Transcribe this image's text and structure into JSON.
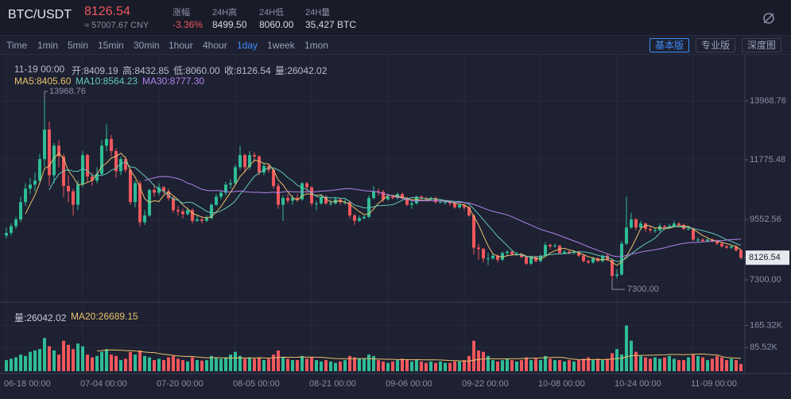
{
  "header": {
    "pair": "BTC/USDT",
    "price": "8126.54",
    "cny": "≈ 57007.67 CNY",
    "stats": [
      {
        "label": "涨幅",
        "value": "-3.36%"
      },
      {
        "label": "24H高",
        "value": "8499.50"
      },
      {
        "label": "24H低",
        "value": "8060.00"
      },
      {
        "label": "24H量",
        "value": "35,427 BTC"
      }
    ]
  },
  "toolbar": {
    "intervals": [
      "Time",
      "1min",
      "5min",
      "15min",
      "30min",
      "1hour",
      "4hour",
      "1day",
      "1week",
      "1mon"
    ],
    "active": "1day",
    "buttons": [
      "基本版",
      "专业版",
      "深度图"
    ]
  },
  "info": {
    "time": "11-19 00:00",
    "items": [
      "开:8409.19",
      "高:8432.85",
      "低:8060.00",
      "收:8126.54",
      "量:26042.02"
    ],
    "ma": [
      {
        "text": "MA5:8405.60",
        "color": "#e8c16a"
      },
      {
        "text": "MA10:8564.23",
        "color": "#5fc9b8"
      },
      {
        "text": "MA30:8777.30",
        "color": "#b083e8"
      }
    ],
    "volume": [
      {
        "text": "量:26042.02",
        "color": "#c9ccd6"
      },
      {
        "text": "MA20:26689.15",
        "color": "#e8c16a"
      }
    ]
  },
  "chart_data": {
    "type": "candlestick",
    "up_color": "#2ebd95",
    "down_color": "#f0575d",
    "ylim": [
      6473,
      15717
    ],
    "yticks": [
      13968.76,
      11775.48,
      9552.56,
      {
        "value": 7300,
        "label": "7300.00"
      }
    ],
    "vol_ylim": [
      0,
      250000
    ],
    "vol_yticks": [
      {
        "value": 165320,
        "label": "165.32K"
      },
      {
        "value": 85520,
        "label": "85.52K"
      }
    ],
    "annotations": {
      "high": "13968.76",
      "low": "7300.00"
    },
    "categories": [
      "06-18 00:00",
      null,
      null,
      null,
      null,
      null,
      null,
      null,
      null,
      null,
      null,
      null,
      null,
      null,
      null,
      null,
      "07-04 00:00",
      null,
      null,
      null,
      null,
      null,
      null,
      null,
      null,
      null,
      null,
      null,
      null,
      null,
      null,
      null,
      "07-20 00:00",
      null,
      null,
      null,
      null,
      null,
      null,
      null,
      null,
      null,
      null,
      null,
      null,
      null,
      null,
      null,
      "08-05 00:00",
      null,
      null,
      null,
      null,
      null,
      null,
      null,
      null,
      null,
      null,
      null,
      null,
      null,
      null,
      null,
      "08-21 00:00",
      null,
      null,
      null,
      null,
      null,
      null,
      null,
      null,
      null,
      null,
      null,
      null,
      null,
      null,
      null,
      "09-06 00:00",
      null,
      null,
      null,
      null,
      null,
      null,
      null,
      null,
      null,
      null,
      null,
      null,
      null,
      null,
      null,
      "09-22 00:00",
      null,
      null,
      null,
      null,
      null,
      null,
      null,
      null,
      null,
      null,
      null,
      null,
      null,
      null,
      null,
      "10-08 00:00",
      null,
      null,
      null,
      null,
      null,
      null,
      null,
      null,
      null,
      null,
      null,
      null,
      null,
      null,
      null,
      "10-24 00:00",
      null,
      null,
      null,
      null,
      null,
      null,
      null,
      null,
      null,
      null,
      null,
      null,
      null,
      null,
      null,
      "11-09 00:00",
      null,
      null,
      null,
      null,
      null,
      null,
      null,
      null,
      null,
      null
    ],
    "candles": [
      [
        8950,
        9250,
        8850,
        9050
      ],
      [
        9050,
        9400,
        8950,
        9300
      ],
      [
        9300,
        9650,
        9200,
        9550
      ],
      [
        9550,
        10400,
        9450,
        10200
      ],
      [
        10200,
        10900,
        10050,
        10700
      ],
      [
        10700,
        11100,
        10500,
        10850
      ],
      [
        10850,
        11300,
        10600,
        11000
      ],
      [
        11000,
        12000,
        10900,
        11800
      ],
      [
        11800,
        13968.76,
        11500,
        12900
      ],
      [
        12900,
        13200,
        10800,
        11200
      ],
      [
        11200,
        12400,
        10900,
        12300
      ],
      [
        12300,
        12500,
        11500,
        11900
      ],
      [
        11900,
        12000,
        10400,
        10800
      ],
      [
        10800,
        11200,
        10200,
        10600
      ],
      [
        10600,
        10700,
        9700,
        10100
      ],
      [
        10100,
        11000,
        9900,
        10850
      ],
      [
        10850,
        12100,
        10750,
        11950
      ],
      [
        11950,
        12000,
        10950,
        11150
      ],
      [
        11150,
        11300,
        10800,
        11000
      ],
      [
        11000,
        11500,
        10900,
        11250
      ],
      [
        11250,
        12500,
        11200,
        12300
      ],
      [
        12300,
        13100,
        12100,
        12550
      ],
      [
        12550,
        12700,
        11900,
        12100
      ],
      [
        12100,
        12200,
        11100,
        11350
      ],
      [
        11350,
        11900,
        11200,
        11800
      ],
      [
        11800,
        11900,
        11300,
        11400
      ],
      [
        11400,
        11450,
        10100,
        10200
      ],
      [
        10200,
        11000,
        10000,
        10900
      ],
      [
        10900,
        11000,
        9300,
        9450
      ],
      [
        9450,
        9900,
        9350,
        9700
      ],
      [
        9700,
        10700,
        9650,
        10650
      ],
      [
        10650,
        10850,
        10400,
        10550
      ],
      [
        10550,
        10900,
        10450,
        10750
      ],
      [
        10750,
        10800,
        10500,
        10600
      ],
      [
        10600,
        10700,
        10250,
        10350
      ],
      [
        10350,
        10400,
        9800,
        9900
      ],
      [
        9900,
        10050,
        9700,
        9850
      ],
      [
        9850,
        9950,
        9600,
        9750
      ],
      [
        9750,
        10000,
        9700,
        9900
      ],
      [
        9900,
        9950,
        9400,
        9500
      ],
      [
        9500,
        9700,
        9450,
        9550
      ],
      [
        9550,
        9650,
        9400,
        9500
      ],
      [
        9500,
        9700,
        9450,
        9600
      ],
      [
        9600,
        10150,
        9550,
        10100
      ],
      [
        10100,
        10500,
        10050,
        10400
      ],
      [
        10400,
        10650,
        10300,
        10550
      ],
      [
        10550,
        10950,
        10450,
        10850
      ],
      [
        10850,
        11050,
        10700,
        10900
      ],
      [
        10900,
        11600,
        10850,
        11500
      ],
      [
        11500,
        12300,
        11400,
        11950
      ],
      [
        11950,
        12000,
        11300,
        11500
      ],
      [
        11500,
        12100,
        11400,
        11950
      ],
      [
        11950,
        12050,
        11700,
        11900
      ],
      [
        11900,
        11950,
        11200,
        11300
      ],
      [
        11300,
        11650,
        11200,
        11550
      ],
      [
        11550,
        11600,
        11300,
        11400
      ],
      [
        11400,
        11450,
        10700,
        10800
      ],
      [
        10800,
        10900,
        9950,
        10100
      ],
      [
        10100,
        10450,
        9500,
        10350
      ],
      [
        10350,
        10500,
        10150,
        10250
      ],
      [
        10250,
        10450,
        10100,
        10350
      ],
      [
        10350,
        10500,
        10200,
        10300
      ],
      [
        10300,
        10950,
        10250,
        10900
      ],
      [
        10900,
        10950,
        10600,
        10750
      ],
      [
        10750,
        10800,
        10050,
        10150
      ],
      [
        10150,
        10250,
        9900,
        10150
      ],
      [
        10150,
        10500,
        10100,
        10400
      ],
      [
        10400,
        10450,
        10100,
        10150
      ],
      [
        10150,
        10300,
        10050,
        10150
      ],
      [
        10150,
        10400,
        10100,
        10300
      ],
      [
        10300,
        10350,
        10100,
        10200
      ],
      [
        10200,
        10300,
        10100,
        10200
      ],
      [
        10200,
        10250,
        9600,
        9700
      ],
      [
        9700,
        9750,
        9350,
        9500
      ],
      [
        9500,
        9700,
        9450,
        9600
      ],
      [
        9600,
        9700,
        9550,
        9650
      ],
      [
        9650,
        10450,
        9600,
        10350
      ],
      [
        10350,
        10800,
        10300,
        10600
      ],
      [
        10600,
        10700,
        10450,
        10580
      ],
      [
        10580,
        10650,
        10200,
        10300
      ],
      [
        10300,
        10500,
        10250,
        10400
      ],
      [
        10400,
        10450,
        10300,
        10350
      ],
      [
        10350,
        10550,
        10300,
        10500
      ],
      [
        10500,
        10550,
        10300,
        10350
      ],
      [
        10350,
        10400,
        10050,
        10100
      ],
      [
        10100,
        10250,
        9950,
        10150
      ],
      [
        10150,
        10450,
        10100,
        10400
      ],
      [
        10400,
        10450,
        10300,
        10350
      ],
      [
        10350,
        10400,
        10250,
        10300
      ],
      [
        10300,
        10400,
        10250,
        10350
      ],
      [
        10350,
        10400,
        10150,
        10200
      ],
      [
        10200,
        10300,
        10150,
        10200
      ],
      [
        10200,
        10250,
        10100,
        10200
      ],
      [
        10200,
        10250,
        10050,
        10150
      ],
      [
        10150,
        10200,
        9950,
        10000
      ],
      [
        10000,
        10150,
        9950,
        10100
      ],
      [
        10100,
        10150,
        9900,
        10000
      ],
      [
        10000,
        10050,
        9650,
        9700
      ],
      [
        9700,
        9750,
        8250,
        8500
      ],
      [
        8500,
        8650,
        8050,
        8450
      ],
      [
        8450,
        8500,
        7950,
        8100
      ],
      [
        8100,
        8300,
        7850,
        8100
      ],
      [
        8100,
        8300,
        8050,
        8200
      ],
      [
        8200,
        8250,
        7950,
        8050
      ],
      [
        8050,
        8350,
        8000,
        8300
      ],
      [
        8300,
        8400,
        8200,
        8350
      ],
      [
        8350,
        8400,
        8200,
        8250
      ],
      [
        8250,
        8350,
        8200,
        8250
      ],
      [
        8250,
        8300,
        8100,
        8150
      ],
      [
        8150,
        8200,
        7850,
        7900
      ],
      [
        7900,
        8200,
        7850,
        8150
      ],
      [
        8150,
        8200,
        7950,
        8000
      ],
      [
        8000,
        8250,
        7950,
        8200
      ],
      [
        8200,
        8700,
        8150,
        8600
      ],
      [
        8600,
        8650,
        8450,
        8550
      ],
      [
        8550,
        8650,
        8500,
        8580
      ],
      [
        8580,
        8600,
        8250,
        8300
      ],
      [
        8300,
        8400,
        8250,
        8350
      ],
      [
        8350,
        8400,
        8250,
        8300
      ],
      [
        8300,
        8400,
        8250,
        8350
      ],
      [
        8350,
        8400,
        8150,
        8200
      ],
      [
        8200,
        8250,
        7950,
        8000
      ],
      [
        8000,
        8050,
        7900,
        7950
      ],
      [
        7950,
        8150,
        7900,
        8100
      ],
      [
        8100,
        8150,
        7950,
        8000
      ],
      [
        8000,
        8250,
        7950,
        8200
      ],
      [
        8200,
        8250,
        8000,
        8050
      ],
      [
        8050,
        8100,
        7300,
        7450
      ],
      [
        7450,
        7700,
        7350,
        7500
      ],
      [
        7500,
        8750,
        7450,
        8650
      ],
      [
        8650,
        10400,
        8600,
        9250
      ],
      [
        9250,
        9800,
        9200,
        9550
      ],
      [
        9550,
        9600,
        9150,
        9250
      ],
      [
        9250,
        9500,
        9150,
        9400
      ],
      [
        9400,
        9450,
        9100,
        9200
      ],
      [
        9200,
        9300,
        9050,
        9150
      ],
      [
        9150,
        9250,
        9050,
        9150
      ],
      [
        9150,
        9400,
        9100,
        9300
      ],
      [
        9300,
        9350,
        9150,
        9250
      ],
      [
        9250,
        9400,
        9200,
        9300
      ],
      [
        9300,
        9500,
        9250,
        9400
      ],
      [
        9400,
        9450,
        9300,
        9350
      ],
      [
        9350,
        9400,
        9150,
        9200
      ],
      [
        9200,
        9300,
        9150,
        9200
      ],
      [
        9200,
        9250,
        8750,
        8800
      ],
      [
        8800,
        8900,
        8700,
        8800
      ],
      [
        8800,
        8850,
        8700,
        8750
      ],
      [
        8750,
        8850,
        8700,
        8800
      ],
      [
        8800,
        8850,
        8700,
        8750
      ],
      [
        8750,
        8800,
        8600,
        8650
      ],
      [
        8650,
        8700,
        8500,
        8550
      ],
      [
        8550,
        8600,
        8450,
        8500
      ],
      [
        8500,
        8600,
        8450,
        8550
      ],
      [
        8550,
        8600,
        8350,
        8400
      ],
      [
        8409.19,
        8432.85,
        8060,
        8126.54
      ]
    ],
    "volumes": [
      40000,
      45000,
      50000,
      60000,
      55000,
      70000,
      75000,
      80000,
      120000,
      90000,
      75000,
      60000,
      110000,
      95000,
      80000,
      100000,
      90000,
      60000,
      50000,
      55000,
      70000,
      80000,
      60000,
      55000,
      40000,
      45000,
      70000,
      60000,
      75000,
      55000,
      50000,
      40000,
      45000,
      40000,
      50000,
      55000,
      45000,
      40000,
      35000,
      50000,
      40000,
      38000,
      40000,
      55000,
      50000,
      45000,
      50000,
      60000,
      70000,
      55000,
      45000,
      50000,
      45000,
      50000,
      40000,
      45000,
      60000,
      75000,
      50000,
      45000,
      40000,
      40000,
      55000,
      45000,
      50000,
      40000,
      35000,
      40000,
      35000,
      30000,
      35000,
      40000,
      55000,
      50000,
      45000,
      45000,
      60000,
      55000,
      40000,
      35000,
      30000,
      35000,
      40000,
      45000,
      40000,
      35000,
      40000,
      35000,
      30000,
      35000,
      30000,
      35000,
      30000,
      30000,
      35000,
      35000,
      40000,
      55000,
      110000,
      75000,
      70000,
      55000,
      40000,
      35000,
      40000,
      45000,
      40000,
      35000,
      40000,
      50000,
      40000,
      45000,
      40000,
      55000,
      45000,
      40000,
      40000,
      35000,
      40000,
      35000,
      40000,
      45000,
      50000,
      40000,
      45000,
      40000,
      45000,
      65000,
      80000,
      60000,
      165000,
      110000,
      70000,
      55000,
      50000,
      45000,
      50000,
      45000,
      50000,
      55000,
      45000,
      40000,
      40000,
      50000,
      60000,
      55000,
      50000,
      40000,
      45000,
      55000,
      50000,
      40000,
      45000,
      40000,
      26042.02
    ],
    "ma_periods": [
      5,
      10,
      30
    ],
    "ma_colors": [
      "#e8c16a",
      "#5fc9b8",
      "#b083e8"
    ],
    "vol_ma_period": 20,
    "vol_ma_color": "#e8c16a"
  }
}
